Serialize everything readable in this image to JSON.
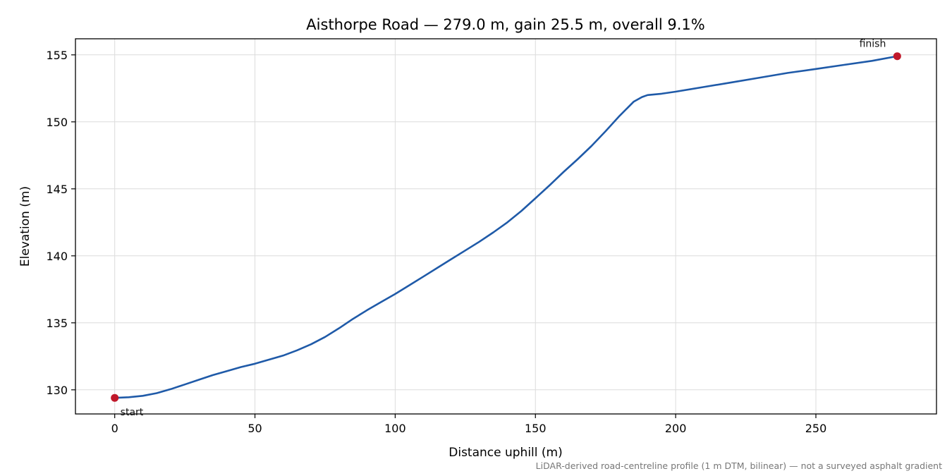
{
  "chart_data": {
    "type": "line",
    "title": "Aisthorpe Road — 279.0 m, gain 25.5 m, overall 9.1%",
    "xlabel": "Distance uphill (m)",
    "ylabel": "Elevation (m)",
    "xlim": [
      -14,
      293
    ],
    "ylim": [
      128.2,
      156.2
    ],
    "x_ticks": [
      0,
      50,
      100,
      150,
      200,
      250
    ],
    "y_ticks": [
      130,
      135,
      140,
      145,
      150,
      155
    ],
    "grid": true,
    "line_color": "#1f5aa8",
    "marker_color": "#c0182a",
    "footnote": "LiDAR-derived road-centreline profile (1 m DTM, bilinear) — not a surveyed asphalt gradient",
    "series": [
      {
        "x": [
          0,
          5,
          10,
          15,
          20,
          25,
          30,
          35,
          40,
          45,
          50,
          55,
          60,
          65,
          70,
          75,
          80,
          85,
          90,
          95,
          100,
          105,
          110,
          115,
          120,
          125,
          130,
          135,
          140,
          145,
          150,
          155,
          160,
          165,
          170,
          175,
          180,
          185,
          188,
          190,
          195,
          200,
          210,
          220,
          230,
          240,
          250,
          260,
          270,
          279
        ],
        "y": [
          129.4,
          129.45,
          129.55,
          129.75,
          130.05,
          130.4,
          130.75,
          131.1,
          131.4,
          131.7,
          131.95,
          132.25,
          132.55,
          132.95,
          133.4,
          133.95,
          134.6,
          135.3,
          135.95,
          136.55,
          137.15,
          137.8,
          138.45,
          139.1,
          139.75,
          140.4,
          141.05,
          141.75,
          142.5,
          143.35,
          144.3,
          145.25,
          146.25,
          147.2,
          148.2,
          149.3,
          150.45,
          151.5,
          151.85,
          152.0,
          152.1,
          152.25,
          152.6,
          152.95,
          153.3,
          153.65,
          153.95,
          154.25,
          154.55,
          154.9
        ]
      }
    ],
    "annotations": [
      {
        "label": "start",
        "x": 0,
        "y": 129.4
      },
      {
        "label": "finish",
        "x": 279,
        "y": 154.9
      }
    ]
  }
}
